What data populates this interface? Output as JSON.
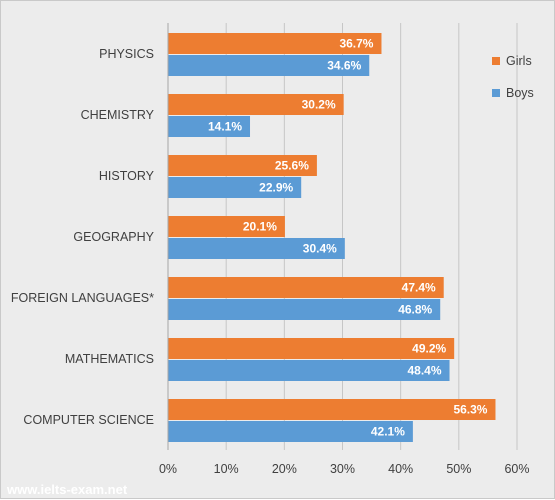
{
  "chart_data": {
    "type": "bar",
    "orientation": "horizontal",
    "categories": [
      "PHYSICS",
      "CHEMISTRY",
      "HISTORY",
      "GEOGRAPHY",
      "FOREIGN LANGUAGES*",
      "MATHEMATICS",
      "COMPUTER SCIENCE"
    ],
    "series": [
      {
        "name": "Girls",
        "color": "#ed7d31",
        "values": [
          36.7,
          30.2,
          25.6,
          20.1,
          47.4,
          49.2,
          56.3
        ],
        "labels": [
          "36.7%",
          "30.2%",
          "25.6%",
          "20.1%",
          "47.4%",
          "49.2%",
          "56.3%"
        ]
      },
      {
        "name": "Boys",
        "color": "#5b9bd5",
        "values": [
          34.6,
          14.1,
          22.9,
          30.4,
          46.8,
          48.4,
          42.1
        ],
        "labels": [
          "34.6%",
          "14.1%",
          "22.9%",
          "30.4%",
          "46.8%",
          "48.4%",
          "42.1%"
        ]
      }
    ],
    "x_ticks": [
      "0%",
      "10%",
      "20%",
      "30%",
      "40%",
      "50%",
      "60%"
    ],
    "xlim": [
      0,
      60
    ],
    "grid": true,
    "legend_position": "top-right",
    "background": "#ececec"
  },
  "watermark": "www.ielts-exam.net"
}
